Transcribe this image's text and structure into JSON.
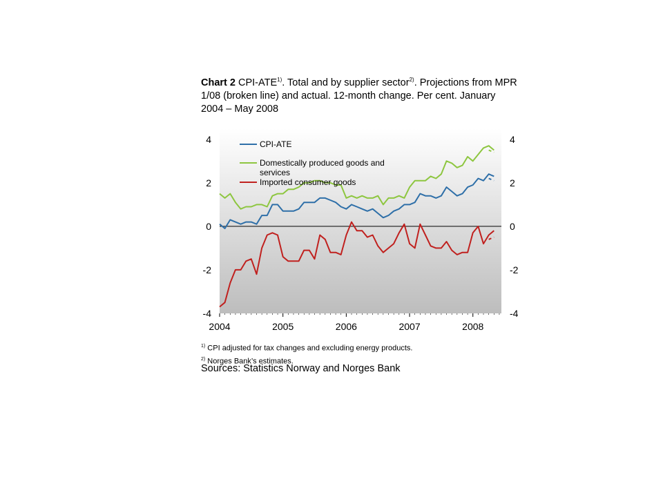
{
  "title": {
    "prefix": "Chart 2",
    "main": "CPI-ATE",
    "sup1": "1)",
    "mid": ". Total and by supplier sector",
    "sup2": "2)",
    "rest": ". Projections from MPR 1/08 (broken line) and actual. 12-month change. Per cent. January 2004 – May 2008"
  },
  "notes": [
    {
      "sup": "1)",
      "text": "CPI adjusted for tax changes and excluding energy products."
    },
    {
      "sup": "2)",
      "text": "Norges Bank’s estimates."
    }
  ],
  "sources": "Sources: Statistics Norway and Norges Bank",
  "chart_data": {
    "type": "line",
    "ylim": [
      -4,
      4.5
    ],
    "xlim": [
      2004.0,
      2008.45
    ],
    "y_ticks": [
      "-4",
      "-2",
      "0",
      "2",
      "4"
    ],
    "x_ticks": [
      "2004",
      "2005",
      "2006",
      "2007",
      "2008"
    ],
    "grid": false,
    "series": [
      {
        "name": "CPI-ATE",
        "color": "#2e6fa8",
        "values": [
          0.1,
          -0.1,
          0.3,
          0.2,
          0.1,
          0.2,
          0.2,
          0.1,
          0.5,
          0.5,
          1.0,
          1.0,
          0.7,
          0.7,
          0.7,
          0.8,
          1.1,
          1.1,
          1.1,
          1.3,
          1.3,
          1.2,
          1.1,
          0.9,
          0.8,
          1.0,
          0.9,
          0.8,
          0.7,
          0.8,
          0.6,
          0.4,
          0.5,
          0.7,
          0.8,
          1.0,
          1.0,
          1.1,
          1.5,
          1.4,
          1.4,
          1.3,
          1.4,
          1.8,
          1.6,
          1.4,
          1.5,
          1.8,
          1.9,
          2.2,
          2.1,
          2.4,
          2.3
        ],
        "projection": [
          2.2,
          2.1
        ]
      },
      {
        "name": "Domestically produced goods and services",
        "color": "#8dc63f",
        "values": [
          1.5,
          1.3,
          1.5,
          1.1,
          0.8,
          0.9,
          0.9,
          1.0,
          1.0,
          0.9,
          1.4,
          1.5,
          1.5,
          1.7,
          1.7,
          1.8,
          2.0,
          2.0,
          2.1,
          2.1,
          2.0,
          2.0,
          1.9,
          1.9,
          1.3,
          1.4,
          1.3,
          1.4,
          1.3,
          1.3,
          1.4,
          1.0,
          1.3,
          1.3,
          1.4,
          1.3,
          1.8,
          2.1,
          2.1,
          2.1,
          2.3,
          2.2,
          2.4,
          3.0,
          2.9,
          2.7,
          2.8,
          3.2,
          3.0,
          3.3,
          3.6,
          3.7,
          3.5
        ],
        "projection": [
          3.5,
          3.4
        ]
      },
      {
        "name": "Imported consumer goods",
        "color": "#c0201e",
        "values": [
          -3.7,
          -3.5,
          -2.6,
          -2.0,
          -2.0,
          -1.6,
          -1.5,
          -2.2,
          -1.0,
          -0.4,
          -0.3,
          -0.4,
          -1.4,
          -1.6,
          -1.6,
          -1.6,
          -1.1,
          -1.1,
          -1.5,
          -0.4,
          -0.6,
          -1.2,
          -1.2,
          -1.3,
          -0.4,
          0.2,
          -0.2,
          -0.2,
          -0.5,
          -0.4,
          -0.9,
          -1.2,
          -1.0,
          -0.8,
          -0.3,
          0.1,
          -0.8,
          -1.0,
          0.1,
          -0.4,
          -0.9,
          -1.0,
          -1.0,
          -0.7,
          -1.1,
          -1.3,
          -1.2,
          -1.2,
          -0.3,
          0.0,
          -0.8,
          -0.4,
          -0.2
        ],
        "projection": [
          -0.6,
          -0.5
        ]
      }
    ]
  }
}
